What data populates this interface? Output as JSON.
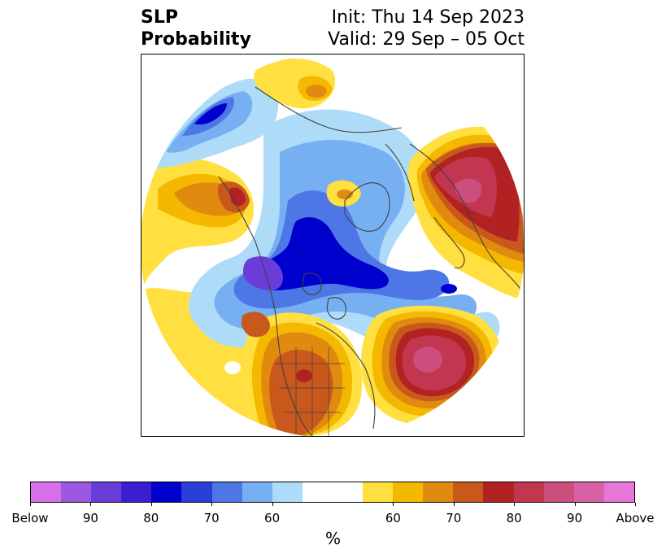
{
  "title": {
    "left_line1": "SLP",
    "left_line2": "Probability",
    "right_line1": "Init: Thu 14 Sep 2023",
    "right_line2": "Valid: 29 Sep – 05 Oct"
  },
  "colorbar": {
    "colors": [
      "#d770e8",
      "#9c58e0",
      "#6a3dd8",
      "#3a1ed0",
      "#0000cc",
      "#2a3fd8",
      "#4e77e6",
      "#77b0f2",
      "#aedcf8",
      "#ffffff",
      "#ffe040",
      "#f4b800",
      "#e08a10",
      "#c8581c",
      "#b22222",
      "#c23650",
      "#cc4e7c",
      "#d861a8",
      "#e676d8"
    ],
    "tick_labels": [
      "Below",
      "90",
      "80",
      "70",
      "60",
      "60",
      "70",
      "80",
      "90",
      "Above"
    ],
    "unit": "%"
  },
  "map": {
    "projection": "north polar stereographic",
    "field": "SLP probability anomalies",
    "palette": {
      "below_light": "#aedcf8",
      "below_mid": "#77b0f2",
      "below_deep": "#4e77e6",
      "below_strong": "#0000cc",
      "below_extreme": "#6a3dd8",
      "above_light": "#ffe040",
      "above_mid": "#f4b800",
      "above_deep": "#e08a10",
      "above_strong": "#c8581c",
      "above_red": "#b22222",
      "above_extreme": "#cc4e7c"
    }
  }
}
